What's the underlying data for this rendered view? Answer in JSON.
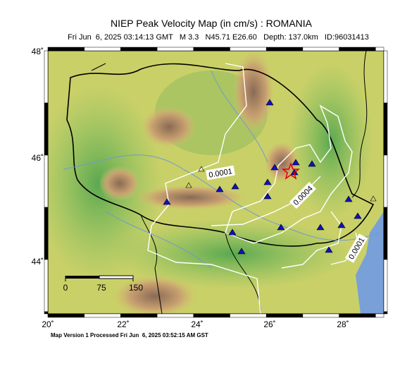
{
  "header": {
    "title": "NIEP Peak Velocity Map (in cm/s) : ROMANIA",
    "subtitle": "Fri Jun  6, 2025 03:14:13 GMT   M 3.3   N45.71 E26.60   Depth: 137.0km   ID:96031413"
  },
  "map": {
    "lon_labels": [
      "20˚",
      "22˚",
      "24˚",
      "26˚",
      "28˚"
    ],
    "lat_labels": [
      "48˚",
      "46˚",
      "44˚"
    ],
    "contour_labels": [
      "0.0001",
      "0.0004",
      "0.0001"
    ],
    "scale_labels": [
      "0",
      "75",
      "150"
    ]
  },
  "footer": "Map Version 1 Processed Fri Jun  6, 2025 03:52:15 AM GST"
}
